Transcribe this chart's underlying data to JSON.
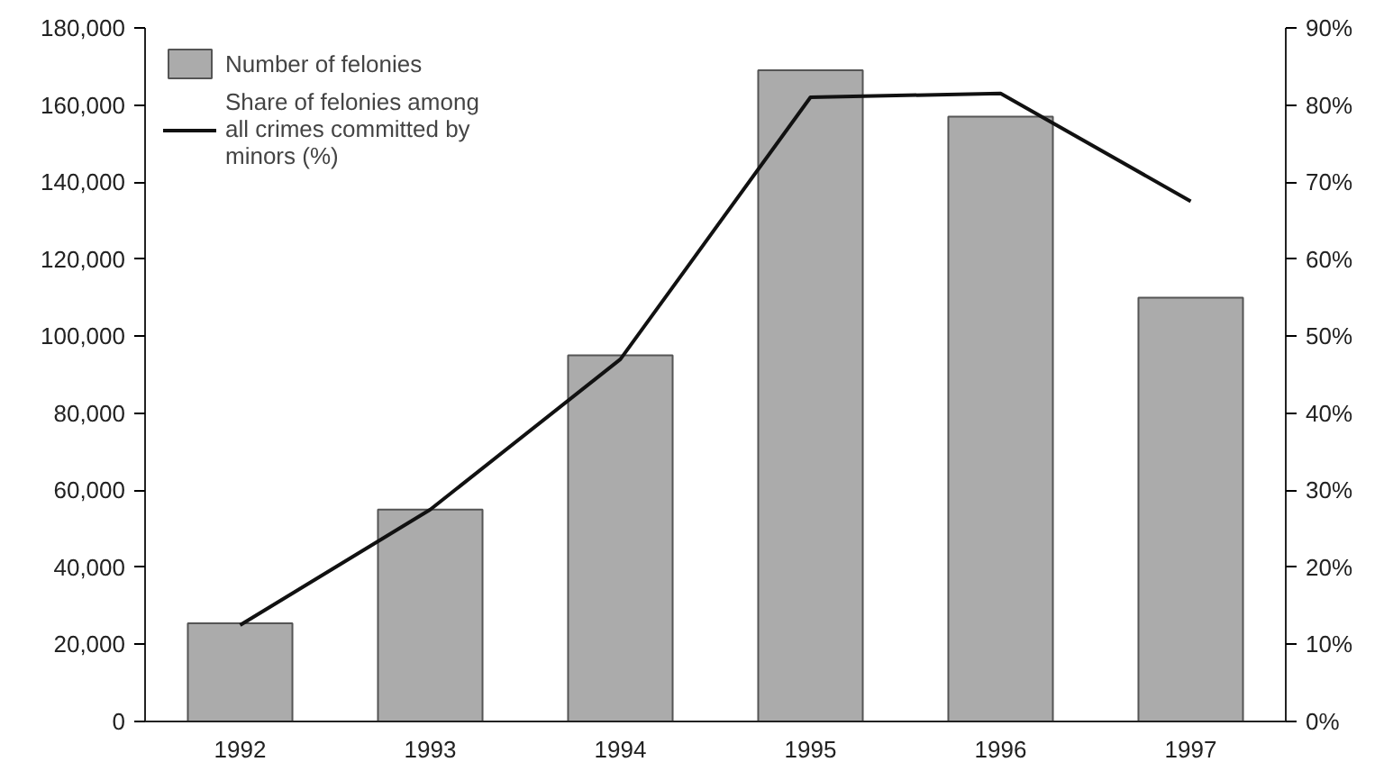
{
  "chart_data": {
    "type": "bar",
    "categories": [
      "1992",
      "1993",
      "1994",
      "1995",
      "1996",
      "1997"
    ],
    "series": [
      {
        "name": "Number of felonies",
        "color": "#ababab",
        "values": [
          25500,
          55000,
          95000,
          169000,
          157000,
          110000
        ]
      },
      {
        "name": "Share of felonies among\nall crimes committed by\nminors (%)",
        "type": "line",
        "axis": "y2",
        "color": "#111111",
        "values": [
          12.5,
          27.5,
          47,
          81,
          81.5,
          67.5
        ]
      }
    ],
    "ylim": [
      0,
      180000
    ],
    "yticks": [
      {
        "value": 0,
        "label": "0"
      },
      {
        "value": 20000,
        "label": "20,000"
      },
      {
        "value": 40000,
        "label": "40,000"
      },
      {
        "value": 60000,
        "label": "60,000"
      },
      {
        "value": 80000,
        "label": "80,000"
      },
      {
        "value": 100000,
        "label": "100,000"
      },
      {
        "value": 120000,
        "label": "120,000"
      },
      {
        "value": 140000,
        "label": "140,000"
      },
      {
        "value": 160000,
        "label": "160,000"
      },
      {
        "value": 180000,
        "label": "180,000"
      }
    ],
    "y2lim": [
      0,
      90
    ],
    "y2ticks": [
      {
        "value": 0,
        "label": "0%"
      },
      {
        "value": 10,
        "label": "10%"
      },
      {
        "value": 20,
        "label": "20%"
      },
      {
        "value": 30,
        "label": "30%"
      },
      {
        "value": 40,
        "label": "40%"
      },
      {
        "value": 50,
        "label": "50%"
      },
      {
        "value": 60,
        "label": "60%"
      },
      {
        "value": 70,
        "label": "70%"
      },
      {
        "value": 80,
        "label": "80%"
      },
      {
        "value": 90,
        "label": "90%"
      }
    ],
    "grid": false,
    "legend": "top left"
  }
}
